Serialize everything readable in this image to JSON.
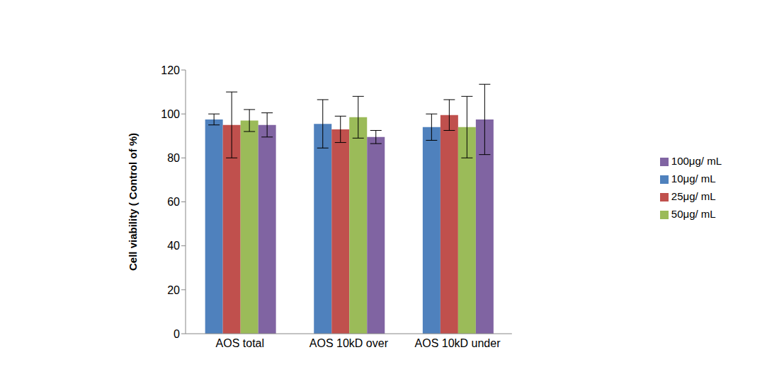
{
  "chart_data": {
    "type": "bar",
    "y_label": "Cell viability ( Control  of %)",
    "categories": [
      "AOS total",
      "AOS 10kD over",
      "AOS 10kD under"
    ],
    "series": [
      {
        "name": "10μg/ mL",
        "color": "#4f81bd",
        "values": [
          97.5,
          95.5,
          94
        ],
        "errors": [
          2.5,
          11,
          6
        ]
      },
      {
        "name": "25μg/ mL",
        "color": "#c0504d",
        "values": [
          95,
          93,
          99.5
        ],
        "errors": [
          15,
          6,
          7
        ]
      },
      {
        "name": "50μg/ mL",
        "color": "#9bbb59",
        "values": [
          97,
          98.5,
          94
        ],
        "errors": [
          5,
          9.5,
          14
        ]
      },
      {
        "name": "100μg/ mL",
        "color": "#8064a2",
        "values": [
          95,
          89.5,
          97.5
        ],
        "errors": [
          5.5,
          3,
          16
        ]
      }
    ],
    "ylim": [
      0,
      120
    ],
    "yticks": [
      0,
      20,
      40,
      60,
      80,
      100,
      120
    ],
    "grid": false,
    "legend": "right"
  }
}
